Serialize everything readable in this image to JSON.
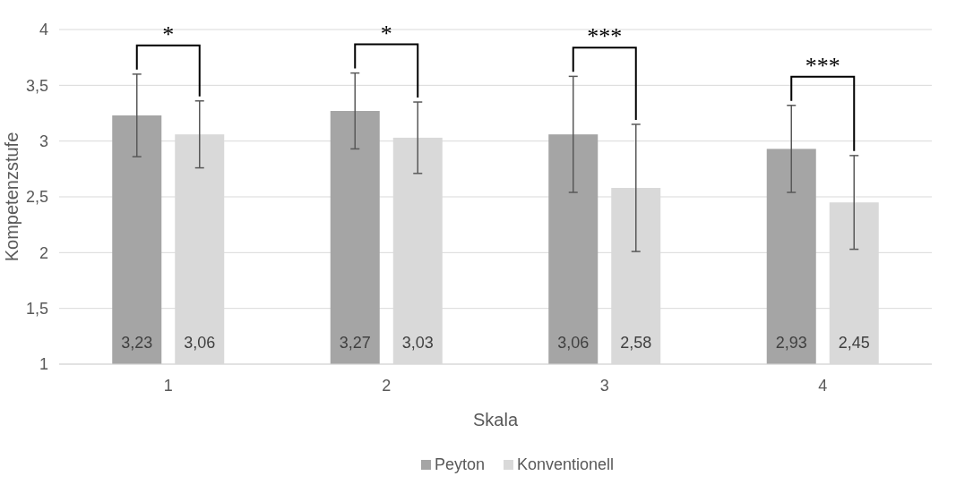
{
  "chart_data": {
    "type": "bar",
    "xlabel": "Skala",
    "ylabel": "Kompetenzstufe",
    "categories": [
      "1",
      "2",
      "3",
      "4"
    ],
    "series": [
      {
        "name": "Peyton",
        "color": "#a5a5a5",
        "values": [
          3.23,
          3.27,
          3.06,
          2.93
        ],
        "errors": [
          0.37,
          0.34,
          0.52,
          0.39
        ],
        "value_labels": [
          "3,23",
          "3,27",
          "3,06",
          "2,93"
        ]
      },
      {
        "name": "Konventionell",
        "color": "#d9d9d9",
        "values": [
          3.06,
          3.03,
          2.58,
          2.45
        ],
        "errors": [
          0.3,
          0.32,
          0.57,
          0.42
        ],
        "value_labels": [
          "3,06",
          "3,03",
          "2,58",
          "2,45"
        ]
      }
    ],
    "ylim": [
      1,
      4
    ],
    "yticks": [
      1,
      {
        "value": 1.5,
        "label": "1,5"
      },
      2,
      {
        "value": 2.5,
        "label": "2,5"
      },
      3,
      {
        "value": 3.5,
        "label": "3,5"
      },
      4
    ],
    "grid": "y",
    "legend": "bottom",
    "annotations": [
      "*",
      "*",
      "***",
      "***"
    ]
  }
}
